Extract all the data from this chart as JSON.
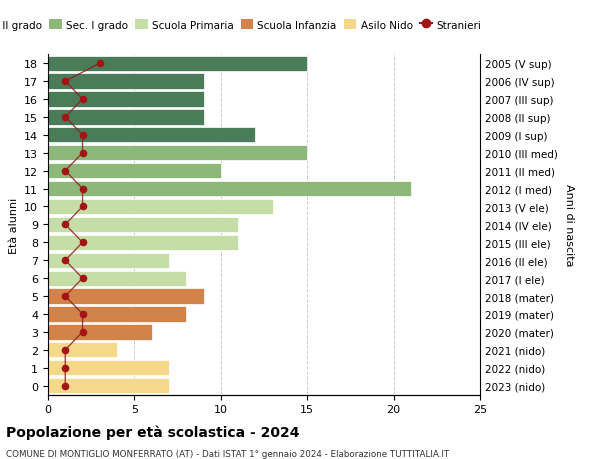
{
  "ages": [
    18,
    17,
    16,
    15,
    14,
    13,
    12,
    11,
    10,
    9,
    8,
    7,
    6,
    5,
    4,
    3,
    2,
    1,
    0
  ],
  "right_labels": [
    "2005 (V sup)",
    "2006 (IV sup)",
    "2007 (III sup)",
    "2008 (II sup)",
    "2009 (I sup)",
    "2010 (III med)",
    "2011 (II med)",
    "2012 (I med)",
    "2013 (V ele)",
    "2014 (IV ele)",
    "2015 (III ele)",
    "2016 (II ele)",
    "2017 (I ele)",
    "2018 (mater)",
    "2019 (mater)",
    "2020 (mater)",
    "2021 (nido)",
    "2022 (nido)",
    "2023 (nido)"
  ],
  "bar_values": [
    15,
    9,
    9,
    9,
    12,
    15,
    10,
    21,
    13,
    11,
    11,
    7,
    8,
    9,
    8,
    6,
    4,
    7,
    7
  ],
  "bar_colors": [
    "#4a7c59",
    "#4a7c59",
    "#4a7c59",
    "#4a7c59",
    "#4a7c59",
    "#8db87a",
    "#8db87a",
    "#8db87a",
    "#c5dea8",
    "#c5dea8",
    "#c5dea8",
    "#c5dea8",
    "#c5dea8",
    "#d2834a",
    "#d2834a",
    "#d2834a",
    "#f5d88a",
    "#f5d88a",
    "#f5d88a"
  ],
  "stranieri_x": [
    3,
    1,
    2,
    1,
    2,
    2,
    1,
    2,
    2,
    1,
    2,
    1,
    2,
    1,
    2,
    2,
    1,
    1,
    1
  ],
  "legend_labels": [
    "Sec. II grado",
    "Sec. I grado",
    "Scuola Primaria",
    "Scuola Infanzia",
    "Asilo Nido",
    "Stranieri"
  ],
  "legend_colors": [
    "#4a7c59",
    "#8db87a",
    "#c5dea8",
    "#d2834a",
    "#f5d88a",
    "#a31515"
  ],
  "title": "Popolazione per età scolastica - 2024",
  "subtitle": "COMUNE DI MONTIGLIO MONFERRATO (AT) - Dati ISTAT 1° gennaio 2024 - Elaborazione TUTTITALIA.IT",
  "ylabel_left": "Età alunni",
  "ylabel_right": "Anni di nascita",
  "xlim": [
    0,
    25
  ],
  "background_color": "#ffffff",
  "grid_color": "#cccccc"
}
